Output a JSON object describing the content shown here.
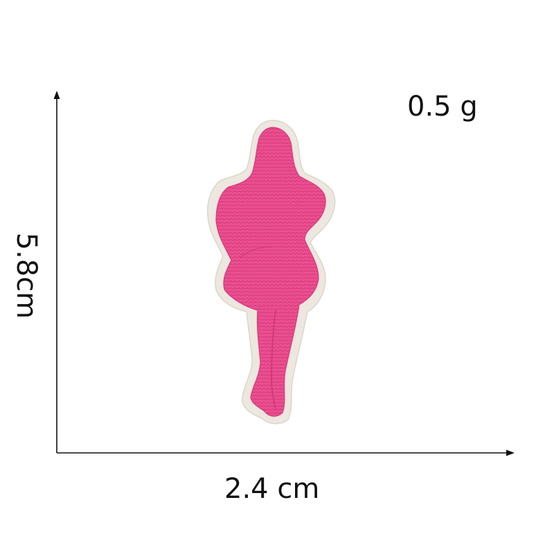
{
  "measurements": {
    "weight": "0.5 g",
    "height": "5.8cm",
    "width": "2.4 cm"
  },
  "colors": {
    "patch_fill": "#e84a8c",
    "patch_border": "#ece7df",
    "axis": "#111111",
    "text": "#111111"
  },
  "image": {
    "subject": "pink silhouette embroidered patch"
  }
}
